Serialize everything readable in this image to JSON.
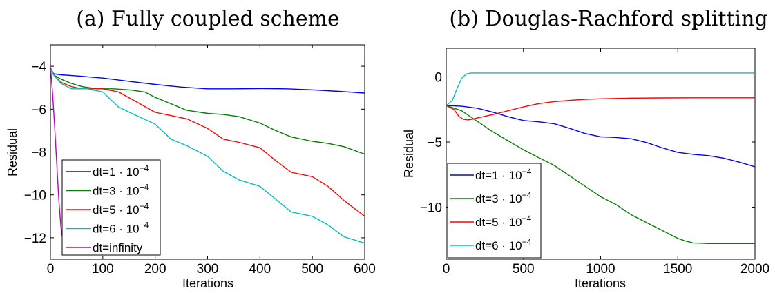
{
  "chart_data": [
    {
      "type": "line",
      "title": "(a) Fully coupled scheme",
      "xlabel": "Iterations",
      "ylabel": "Residual",
      "xlim": [
        0,
        600
      ],
      "ylim": [
        -13,
        -3
      ],
      "xticks": [
        0,
        100,
        200,
        300,
        400,
        500,
        600
      ],
      "yticks": [
        -12,
        -10,
        -8,
        -6,
        -4
      ],
      "grid": false,
      "legend_position": "left",
      "series": [
        {
          "name": "dt=1 · 10",
          "exp": "−4",
          "color": "#0000ff",
          "x": [
            0,
            6,
            20,
            50,
            100,
            150,
            200,
            250,
            300,
            350,
            400,
            450,
            500,
            550,
            600
          ],
          "y": [
            -4.05,
            -4.35,
            -4.4,
            -4.45,
            -4.55,
            -4.7,
            -4.85,
            -4.97,
            -5.05,
            -5.05,
            -5.04,
            -5.05,
            -5.1,
            -5.17,
            -5.25
          ]
        },
        {
          "name": "dt=3 · 10",
          "exp": "−4",
          "color": "#008000",
          "x": [
            0,
            6,
            20,
            40,
            60,
            90,
            120,
            150,
            180,
            200,
            230,
            260,
            300,
            330,
            360,
            400,
            430,
            460,
            500,
            530,
            560,
            600
          ],
          "y": [
            -4.05,
            -4.4,
            -4.6,
            -4.8,
            -4.95,
            -5.05,
            -5.05,
            -5.1,
            -5.2,
            -5.45,
            -5.75,
            -6.05,
            -6.2,
            -6.25,
            -6.35,
            -6.65,
            -7.0,
            -7.3,
            -7.5,
            -7.6,
            -7.75,
            -8.1
          ]
        },
        {
          "name": "dt=5 · 10",
          "exp": "−4",
          "color": "#ff0000",
          "x": [
            0,
            6,
            20,
            40,
            60,
            100,
            130,
            160,
            200,
            230,
            260,
            300,
            330,
            360,
            400,
            430,
            460,
            500,
            530,
            560,
            600
          ],
          "y": [
            -4.05,
            -4.4,
            -4.75,
            -4.95,
            -5.05,
            -5.05,
            -5.2,
            -5.6,
            -6.15,
            -6.3,
            -6.45,
            -6.9,
            -7.4,
            -7.55,
            -7.8,
            -8.4,
            -8.95,
            -9.15,
            -9.6,
            -10.25,
            -11.0
          ]
        },
        {
          "name": "dt=6 · 10",
          "exp": "−4",
          "color": "#00bfbf",
          "x": [
            0,
            6,
            20,
            40,
            70,
            100,
            130,
            160,
            200,
            230,
            260,
            300,
            330,
            360,
            400,
            430,
            460,
            500,
            530,
            560,
            600
          ],
          "y": [
            -4.05,
            -4.4,
            -4.8,
            -5.05,
            -5.05,
            -5.2,
            -5.9,
            -6.25,
            -6.7,
            -7.4,
            -7.7,
            -8.2,
            -8.9,
            -9.3,
            -9.6,
            -10.2,
            -10.8,
            -11.0,
            -11.4,
            -11.95,
            -12.25
          ]
        },
        {
          "name": "dt=infinity",
          "exp": "",
          "color": "#bf00bf",
          "x": [
            0,
            4,
            8,
            12,
            16,
            20,
            24,
            28,
            40,
            60,
            80,
            100,
            120,
            140,
            160,
            180,
            205
          ],
          "y": [
            -4.0,
            -5.2,
            -6.8,
            -8.5,
            -10.2,
            -11.5,
            -12.2,
            -12.4,
            -12.43,
            -12.4,
            -12.45,
            -12.4,
            -12.44,
            -12.4,
            -12.43,
            -12.41,
            -12.42
          ]
        }
      ]
    },
    {
      "type": "line",
      "title": "(b) Douglas-Rachford splitting",
      "xlabel": "Iterations",
      "ylabel": "Residual",
      "xlim": [
        0,
        2000
      ],
      "ylim": [
        -14,
        2.2
      ],
      "xticks": [
        0,
        500,
        1000,
        1500,
        2000
      ],
      "yticks": [
        -10,
        -5,
        0
      ],
      "grid": false,
      "legend_position": "bottom-left",
      "series": [
        {
          "name": "dt=1 · 10",
          "exp": "−4",
          "color": "#0000ff",
          "x": [
            0,
            100,
            200,
            300,
            400,
            500,
            600,
            700,
            800,
            900,
            1000,
            1100,
            1200,
            1300,
            1400,
            1500,
            1600,
            1700,
            1800,
            1900,
            2000
          ],
          "y": [
            -2.2,
            -2.25,
            -2.4,
            -2.7,
            -3.05,
            -3.35,
            -3.45,
            -3.6,
            -3.95,
            -4.35,
            -4.6,
            -4.65,
            -4.75,
            -5.05,
            -5.45,
            -5.8,
            -5.95,
            -6.05,
            -6.25,
            -6.55,
            -6.9
          ]
        },
        {
          "name": "dt=3 · 10",
          "exp": "−4",
          "color": "#008000",
          "x": [
            0,
            100,
            200,
            300,
            400,
            500,
            600,
            700,
            800,
            900,
            1000,
            1100,
            1200,
            1300,
            1400,
            1500,
            1550,
            1600,
            1700,
            1800,
            2000
          ],
          "y": [
            -2.2,
            -2.6,
            -3.4,
            -4.2,
            -4.9,
            -5.6,
            -6.2,
            -6.8,
            -7.6,
            -8.4,
            -9.2,
            -9.8,
            -10.6,
            -11.2,
            -11.8,
            -12.4,
            -12.6,
            -12.75,
            -12.8,
            -12.8,
            -12.8
          ]
        },
        {
          "name": "dt=5 · 10",
          "exp": "−4",
          "color": "#ff0000",
          "x": [
            0,
            50,
            80,
            110,
            140,
            170,
            200,
            300,
            400,
            500,
            600,
            700,
            800,
            900,
            1000,
            1200,
            1400,
            1600,
            1800,
            2000
          ],
          "y": [
            -2.2,
            -2.5,
            -3.0,
            -3.25,
            -3.3,
            -3.25,
            -3.15,
            -2.9,
            -2.6,
            -2.3,
            -2.05,
            -1.9,
            -1.8,
            -1.72,
            -1.68,
            -1.63,
            -1.61,
            -1.6,
            -1.6,
            -1.6
          ]
        },
        {
          "name": "dt=6 · 10",
          "exp": "−4",
          "color": "#00bfbf",
          "x": [
            0,
            40,
            70,
            100,
            130,
            160,
            200,
            300,
            500,
            1000,
            1500,
            2000
          ],
          "y": [
            -2.2,
            -1.8,
            -0.9,
            -0.1,
            0.22,
            0.3,
            0.3,
            0.3,
            0.3,
            0.3,
            0.3,
            0.3
          ]
        }
      ]
    }
  ]
}
